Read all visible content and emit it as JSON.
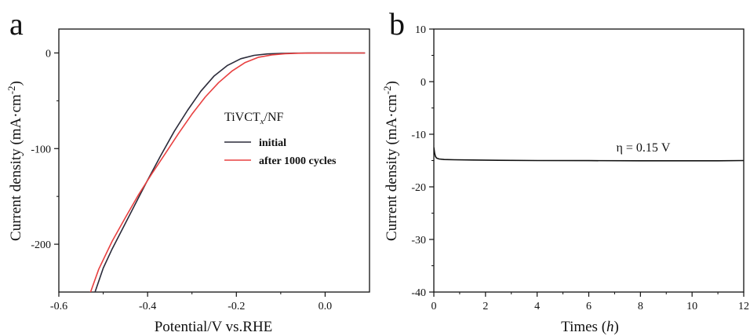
{
  "chart_data": [
    {
      "panel": "a",
      "type": "line",
      "xlabel": "Potential/V vs.RHE",
      "ylabel": "Current density (mA·cm⁻²)",
      "xlim": [
        -0.6,
        0.1
      ],
      "ylim": [
        -250,
        25
      ],
      "xticks": [
        -0.6,
        -0.4,
        -0.2,
        0.0
      ],
      "xtick_labels": [
        "-0.6",
        "-0.4",
        "-0.2",
        "0.0"
      ],
      "yticks": [
        0,
        -100,
        -200
      ],
      "ytick_labels": [
        "0",
        "-100",
        "-200"
      ],
      "legend_title": "TiVCTx/NF",
      "legend_position": "center-right",
      "grid": false,
      "series": [
        {
          "name": "initial",
          "color": "#2b2b3a",
          "x": [
            -0.52,
            -0.5,
            -0.48,
            -0.45,
            -0.42,
            -0.4,
            -0.37,
            -0.34,
            -0.31,
            -0.28,
            -0.25,
            -0.22,
            -0.19,
            -0.16,
            -0.13,
            -0.1,
            -0.07,
            -0.04,
            0.0,
            0.05,
            0.09
          ],
          "y": [
            -252,
            -225,
            -205,
            -178,
            -151,
            -133,
            -107,
            -82,
            -60,
            -40,
            -24,
            -13,
            -6,
            -2.5,
            -1,
            -0.5,
            -0.2,
            0,
            0,
            0,
            0
          ]
        },
        {
          "name": "after 1000 cycles",
          "color": "#e84040",
          "x": [
            -0.53,
            -0.51,
            -0.48,
            -0.45,
            -0.42,
            -0.39,
            -0.36,
            -0.33,
            -0.3,
            -0.27,
            -0.24,
            -0.21,
            -0.18,
            -0.15,
            -0.12,
            -0.09,
            -0.06,
            -0.03,
            0.0,
            0.05,
            0.09
          ],
          "y": [
            -252,
            -226,
            -197,
            -172,
            -148,
            -126,
            -105,
            -84,
            -64,
            -46,
            -31,
            -19,
            -10,
            -4.5,
            -2,
            -0.8,
            -0.3,
            -0.1,
            0,
            0,
            0
          ]
        }
      ]
    },
    {
      "panel": "b",
      "type": "line",
      "xlabel": "Times (h)",
      "ylabel": "Current density (mA·cm⁻²)",
      "xlim": [
        0,
        12
      ],
      "ylim": [
        -40,
        10
      ],
      "xticks": [
        0,
        2,
        4,
        6,
        8,
        10,
        12
      ],
      "xtick_labels": [
        "0",
        "2",
        "4",
        "6",
        "8",
        "10",
        "12"
      ],
      "yticks": [
        10,
        0,
        -10,
        -20,
        -30,
        -40
      ],
      "ytick_labels": [
        "10",
        "0",
        "-10",
        "-20",
        "-30",
        "-40"
      ],
      "annotation": "η = 0.15 V",
      "grid": false,
      "series": [
        {
          "color": "#111111",
          "x": [
            0,
            0.03,
            0.06,
            0.1,
            0.2,
            0.4,
            0.8,
            1.5,
            2.5,
            4,
            6,
            8,
            10,
            11,
            12
          ],
          "y": [
            -12.5,
            -13.6,
            -14.2,
            -14.5,
            -14.7,
            -14.8,
            -14.85,
            -14.9,
            -14.95,
            -15.0,
            -15.02,
            -15.05,
            -15.05,
            -15.05,
            -15.0
          ]
        }
      ]
    }
  ]
}
